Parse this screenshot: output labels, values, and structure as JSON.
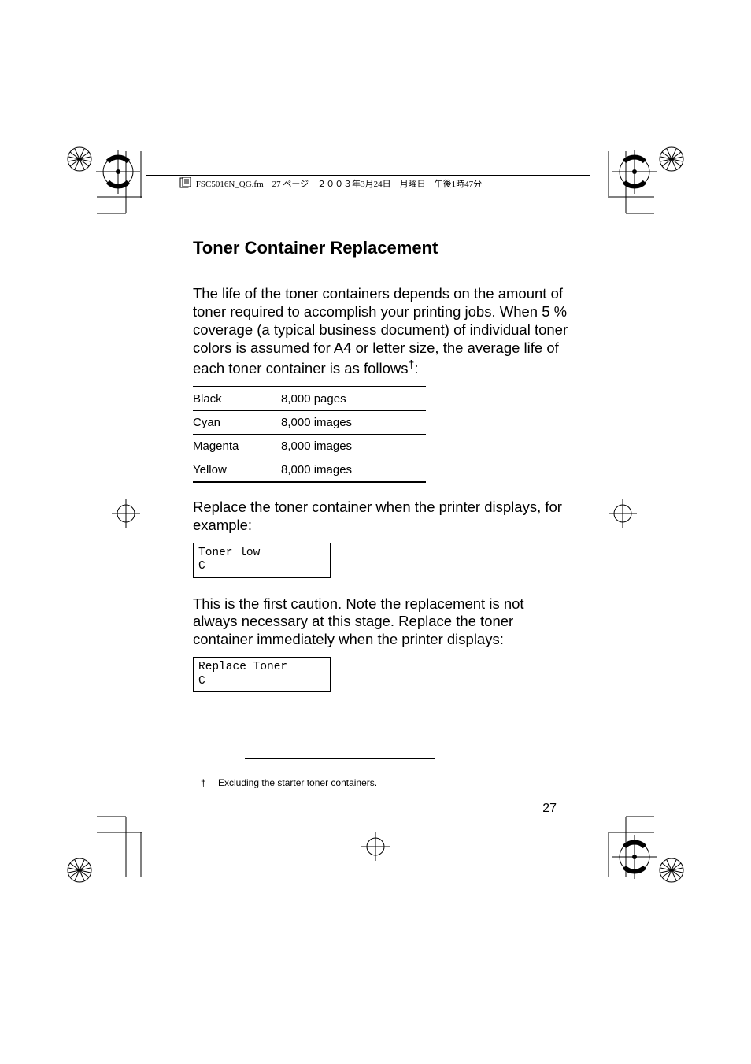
{
  "header": {
    "text": "FSC5016N_QG.fm　27 ページ　２００３年3月24日　月曜日　午後1時47分"
  },
  "heading": "Toner Container Replacement",
  "para1": "The life of the toner containers depends on the amount of toner required to accomplish your printing jobs. When 5 % coverage (a typical business document) of individual toner colors is assumed for A4 or letter size, the average life of each toner container is as follows",
  "para1_dagger": "†",
  "para1_tail": ":",
  "table": {
    "rows": [
      {
        "label": "Black",
        "value": "8,000 pages"
      },
      {
        "label": "Cyan",
        "value": "8,000 images"
      },
      {
        "label": "Magenta",
        "value": "8,000 images"
      },
      {
        "label": "Yellow",
        "value": "8,000 images"
      }
    ]
  },
  "para2": "Replace the toner container when the printer displays, for example:",
  "display1_line1": "Toner low",
  "display1_line2": "C",
  "para3": "This is the first caution. Note the replacement is not always necessary at this stage. Replace the toner container immediately when the printer displays:",
  "display2_line1": "Replace Toner",
  "display2_line2": "C",
  "footnote": {
    "dagger": "†",
    "text": "Excluding the starter toner containers."
  },
  "pagenum": "27",
  "colors": {
    "text": "#000000",
    "background": "#ffffff"
  }
}
